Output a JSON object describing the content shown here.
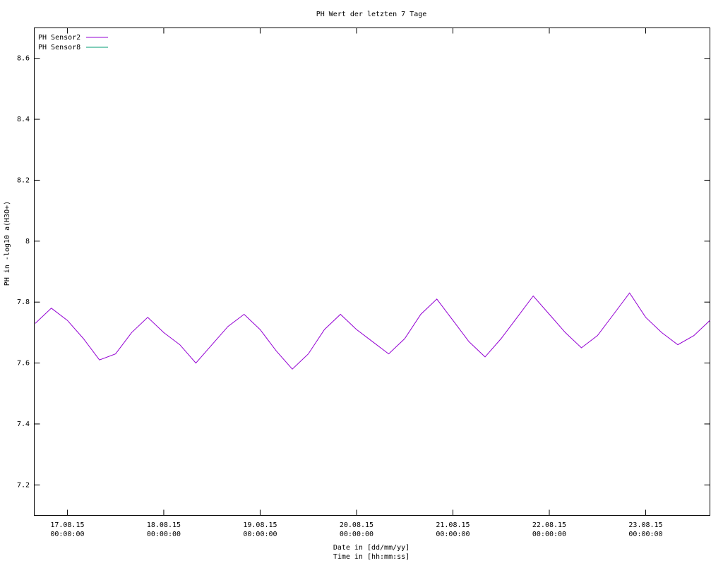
{
  "chart_data": {
    "type": "line",
    "title": "PH Wert der letzten 7 Tage",
    "xlabel": [
      "Date in [dd/mm/yy]",
      "Time in [hh:mm:ss]"
    ],
    "ylabel": "PH in -log10 a(H3O+)",
    "x": [
      "16.08.15 16:00:00",
      "16.08.15 20:00:00",
      "17.08.15 00:00:00",
      "17.08.15 04:00:00",
      "17.08.15 08:00:00",
      "17.08.15 12:00:00",
      "17.08.15 16:00:00",
      "17.08.15 20:00:00",
      "18.08.15 00:00:00",
      "18.08.15 04:00:00",
      "18.08.15 08:00:00",
      "18.08.15 12:00:00",
      "18.08.15 16:00:00",
      "18.08.15 20:00:00",
      "19.08.15 00:00:00",
      "19.08.15 04:00:00",
      "19.08.15 08:00:00",
      "19.08.15 12:00:00",
      "19.08.15 16:00:00",
      "19.08.15 20:00:00",
      "20.08.15 00:00:00",
      "20.08.15 04:00:00",
      "20.08.15 08:00:00",
      "20.08.15 12:00:00",
      "20.08.15 16:00:00",
      "20.08.15 20:00:00",
      "21.08.15 00:00:00",
      "21.08.15 04:00:00",
      "21.08.15 08:00:00",
      "21.08.15 12:00:00",
      "21.08.15 16:00:00",
      "21.08.15 20:00:00",
      "22.08.15 00:00:00",
      "22.08.15 04:00:00",
      "22.08.15 08:00:00",
      "22.08.15 12:00:00",
      "22.08.15 16:00:00",
      "22.08.15 20:00:00",
      "23.08.15 00:00:00",
      "23.08.15 04:00:00",
      "23.08.15 08:00:00",
      "23.08.15 12:00:00",
      "23.08.15 16:00:00"
    ],
    "series": [
      {
        "name": "PH Sensor2",
        "color": "#9400d3",
        "values": [
          7.73,
          7.78,
          7.74,
          7.68,
          7.61,
          7.63,
          7.7,
          7.75,
          7.7,
          7.66,
          7.6,
          7.66,
          7.72,
          7.76,
          7.71,
          7.64,
          7.58,
          7.63,
          7.71,
          7.76,
          7.71,
          7.67,
          7.63,
          7.68,
          7.76,
          7.81,
          7.74,
          7.67,
          7.62,
          7.68,
          7.75,
          7.82,
          7.76,
          7.7,
          7.65,
          7.69,
          7.76,
          7.83,
          7.75,
          7.7,
          7.66,
          7.69,
          7.74
        ]
      },
      {
        "name": "PH Sensor8",
        "color": "#009e73",
        "values": [
          null,
          null,
          null,
          null,
          null,
          null,
          null,
          null,
          null,
          null,
          null,
          null,
          null,
          null,
          null,
          null,
          null,
          null,
          null,
          null,
          null,
          null,
          null,
          null,
          null,
          null,
          null,
          null,
          null,
          null,
          null,
          null,
          null,
          null,
          null,
          null,
          null,
          null,
          null,
          null,
          null,
          null,
          null
        ]
      }
    ],
    "xlim": [
      "16.08.15 15:45:00",
      "23.08.15 16:00:00"
    ],
    "xticks": [
      {
        "value": "17.08.15 00:00:00",
        "label": [
          "17.08.15",
          "00:00:00"
        ]
      },
      {
        "value": "18.08.15 00:00:00",
        "label": [
          "18.08.15",
          "00:00:00"
        ]
      },
      {
        "value": "19.08.15 00:00:00",
        "label": [
          "19.08.15",
          "00:00:00"
        ]
      },
      {
        "value": "20.08.15 00:00:00",
        "label": [
          "20.08.15",
          "00:00:00"
        ]
      },
      {
        "value": "21.08.15 00:00:00",
        "label": [
          "21.08.15",
          "00:00:00"
        ]
      },
      {
        "value": "22.08.15 00:00:00",
        "label": [
          "22.08.15",
          "00:00:00"
        ]
      },
      {
        "value": "23.08.15 00:00:00",
        "label": [
          "23.08.15",
          "00:00:00"
        ]
      }
    ],
    "ylim": [
      7.1,
      8.7
    ],
    "yticks": [
      7.2,
      7.4,
      7.6,
      7.8,
      8,
      8.2,
      8.4,
      8.6
    ],
    "grid": false,
    "legend": "top-left"
  }
}
